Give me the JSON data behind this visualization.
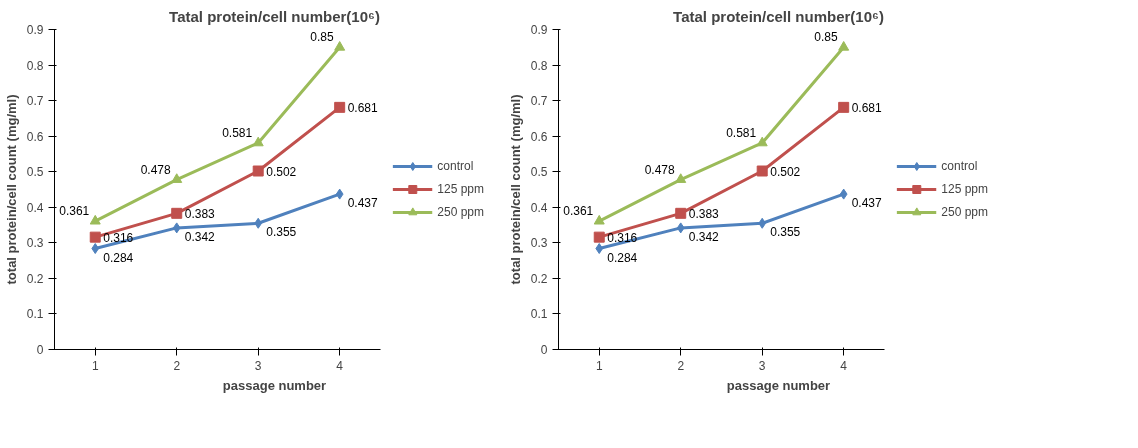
{
  "chart_data": [
    {
      "type": "line",
      "title": "Tatal protein/cell number(10⁶)",
      "xlabel": "passage number",
      "ylabel": "total protein/cell count (mg/ml)",
      "categories": [
        "1",
        "2",
        "3",
        "4"
      ],
      "ylim": [
        0,
        0.9
      ],
      "yticks": [
        0,
        0.1,
        0.2,
        0.3,
        0.4,
        0.5,
        0.6,
        0.7,
        0.8,
        0.9
      ],
      "grid": false,
      "legend": "right",
      "data_labels": true,
      "series": [
        {
          "name": "control",
          "color": "#4f81bd",
          "marker": "diamond",
          "values": [
            0.284,
            0.342,
            0.355,
            0.437
          ]
        },
        {
          "name": "125 ppm",
          "color": "#c0504d",
          "marker": "square",
          "values": [
            0.316,
            0.383,
            0.502,
            0.681
          ]
        },
        {
          "name": "250 ppm",
          "color": "#9bbb59",
          "marker": "triangle",
          "values": [
            0.361,
            0.478,
            0.581,
            0.85
          ]
        }
      ]
    },
    {
      "type": "line",
      "title": "Tatal protein/cell number(10⁶)",
      "xlabel": "passage number",
      "ylabel": "total protein/cell count (mg/ml)",
      "categories": [
        "1",
        "2",
        "3",
        "4"
      ],
      "ylim": [
        0,
        0.9
      ],
      "yticks": [
        0,
        0.1,
        0.2,
        0.3,
        0.4,
        0.5,
        0.6,
        0.7,
        0.8,
        0.9
      ],
      "grid": false,
      "legend": "right",
      "data_labels": true,
      "series": [
        {
          "name": "control",
          "color": "#4f81bd",
          "marker": "diamond",
          "values": [
            0.284,
            0.342,
            0.355,
            0.437
          ]
        },
        {
          "name": "125 ppm",
          "color": "#c0504d",
          "marker": "square",
          "values": [
            0.316,
            0.383,
            0.502,
            0.681
          ]
        },
        {
          "name": "250 ppm",
          "color": "#9bbb59",
          "marker": "triangle",
          "values": [
            0.361,
            0.478,
            0.581,
            0.85
          ]
        }
      ]
    }
  ]
}
